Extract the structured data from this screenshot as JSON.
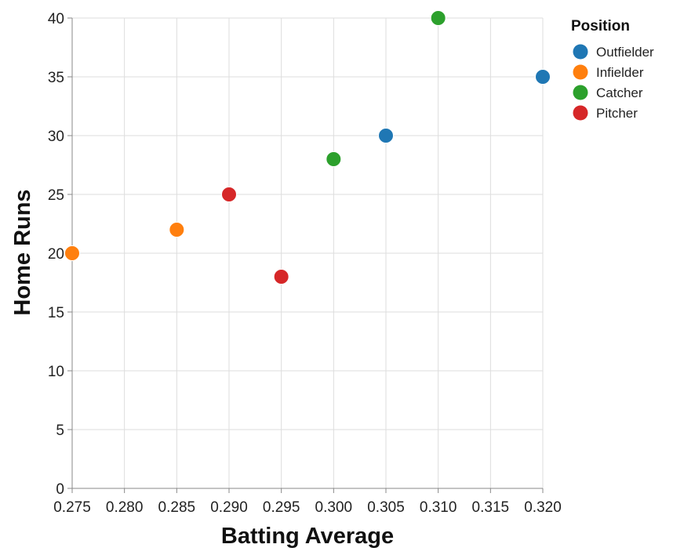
{
  "chart_data": {
    "type": "scatter",
    "xlabel": "Batting Average",
    "ylabel": "Home Runs",
    "xlim": [
      0.275,
      0.32
    ],
    "ylim": [
      0,
      40
    ],
    "x_ticks": [
      "0.275",
      "0.280",
      "0.285",
      "0.290",
      "0.295",
      "0.300",
      "0.305",
      "0.310",
      "0.315",
      "0.320"
    ],
    "y_ticks": [
      "0",
      "5",
      "10",
      "15",
      "20",
      "25",
      "30",
      "35",
      "40"
    ],
    "grid": true,
    "legend": {
      "title": "Position",
      "placement": "top-right",
      "items": [
        {
          "label": "Outfielder",
          "color": "#1f77b4"
        },
        {
          "label": "Infielder",
          "color": "#ff7f0e"
        },
        {
          "label": "Catcher",
          "color": "#2ca02c"
        },
        {
          "label": "Pitcher",
          "color": "#d62728"
        }
      ]
    },
    "series": [
      {
        "name": "Outfielder",
        "color": "#1f77b4",
        "points": [
          {
            "x": 0.305,
            "y": 30
          },
          {
            "x": 0.32,
            "y": 35
          }
        ]
      },
      {
        "name": "Infielder",
        "color": "#ff7f0e",
        "points": [
          {
            "x": 0.275,
            "y": 20
          },
          {
            "x": 0.285,
            "y": 22
          }
        ]
      },
      {
        "name": "Catcher",
        "color": "#2ca02c",
        "points": [
          {
            "x": 0.3,
            "y": 28
          },
          {
            "x": 0.31,
            "y": 40
          }
        ]
      },
      {
        "name": "Pitcher",
        "color": "#d62728",
        "points": [
          {
            "x": 0.29,
            "y": 25
          },
          {
            "x": 0.295,
            "y": 18
          }
        ]
      }
    ]
  }
}
